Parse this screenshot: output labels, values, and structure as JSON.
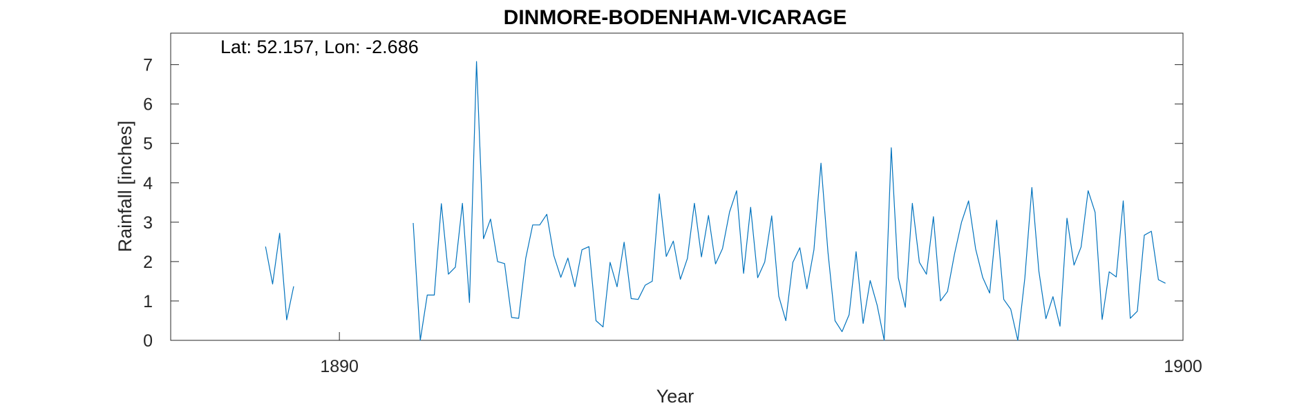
{
  "chart_data": {
    "type": "line",
    "title": "DINMORE-BODENHAM-VICARAGE",
    "xlabel": "Year",
    "ylabel": "Rainfall [inches]",
    "annotation": "Lat: 52.157, Lon: -2.686",
    "xlim": [
      1888,
      1900
    ],
    "ylim": [
      0,
      7.8
    ],
    "x_ticks": [
      1890,
      1900
    ],
    "x_tick_labels": [
      "1890",
      "1900"
    ],
    "y_ticks": [
      0,
      1,
      2,
      3,
      4,
      5,
      6,
      7
    ],
    "y_tick_labels": [
      "0",
      "1",
      "2",
      "3",
      "4",
      "5",
      "6",
      "7"
    ],
    "grid": false,
    "line_color": "#0072BD",
    "series": [
      {
        "x_start": 1889.125,
        "x_step": 0.08333333,
        "values": [
          2.38,
          1.43,
          2.72,
          0.52,
          1.37,
          null,
          null,
          null,
          null,
          null,
          null,
          null,
          null,
          null,
          null,
          null,
          null,
          null,
          null,
          null,
          null,
          2.98,
          0.0,
          1.15,
          1.15,
          3.47,
          1.68,
          1.86,
          3.48,
          0.96,
          7.08,
          2.58,
          3.08,
          2.0,
          1.95,
          0.58,
          0.56,
          2.08,
          2.93,
          2.93,
          3.2,
          2.15,
          1.6,
          2.09,
          1.36,
          2.3,
          2.38,
          0.5,
          0.34,
          1.98,
          1.36,
          2.49,
          1.06,
          1.04,
          1.4,
          1.5,
          3.72,
          2.13,
          2.52,
          1.55,
          2.08,
          3.48,
          2.12,
          3.17,
          1.94,
          2.33,
          3.26,
          3.8,
          1.7,
          3.38,
          1.59,
          1.99,
          3.16,
          1.12,
          0.5,
          1.98,
          2.35,
          1.31,
          2.3,
          4.5,
          2.24,
          0.5,
          0.22,
          0.65,
          2.25,
          0.43,
          1.52,
          0.89,
          0.0,
          4.89,
          1.59,
          0.84,
          3.48,
          1.98,
          1.68,
          3.14,
          1.0,
          1.24,
          2.2,
          3.0,
          3.54,
          2.32,
          1.6,
          1.2,
          3.05,
          1.04,
          0.79,
          0.0,
          1.58,
          3.88,
          1.76,
          0.55,
          1.11,
          0.36,
          3.1,
          1.91,
          2.37,
          3.8,
          3.25,
          0.53,
          1.74,
          1.61,
          3.54,
          0.56,
          0.74,
          2.67,
          2.77,
          1.54,
          1.45
        ]
      }
    ]
  }
}
